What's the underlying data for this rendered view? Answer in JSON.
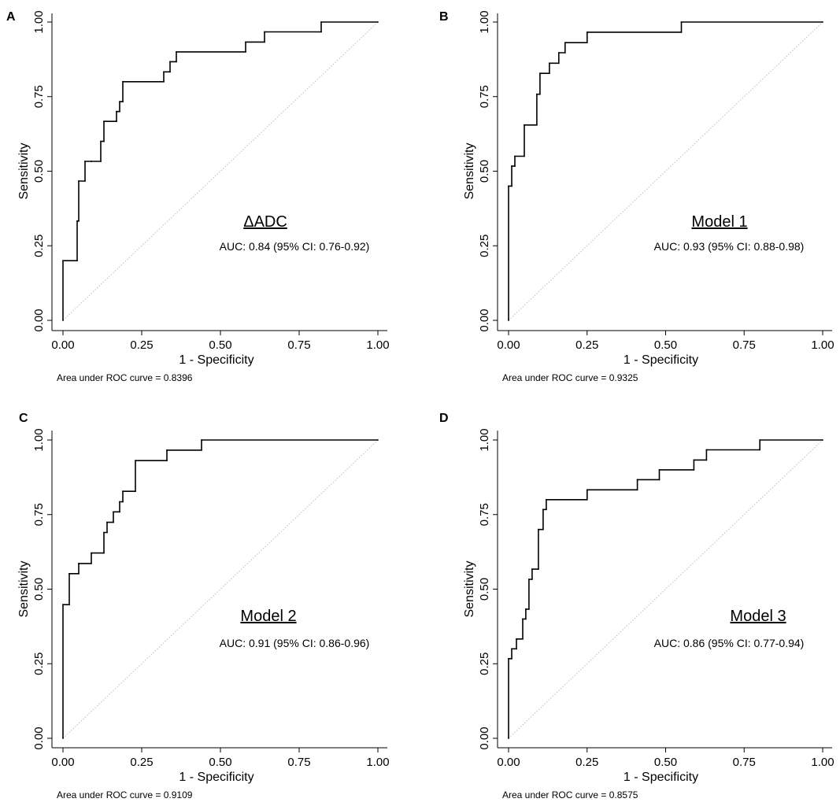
{
  "chart_data": [
    {
      "type": "line",
      "panel": "A",
      "title": "ΔADC",
      "annotation": "AUC: 0.84 (95% CI: 0.76-0.92)",
      "footer": "Area under ROC curve = 0.8396",
      "xlabel": "1 - Specificity",
      "ylabel": "Sensitivity",
      "xlim": [
        0,
        1
      ],
      "ylim": [
        0,
        1
      ],
      "xticks": [
        "0.00",
        "0.25",
        "0.50",
        "0.75",
        "1.00"
      ],
      "yticks": [
        "0.00",
        "0.25",
        "0.50",
        "0.75",
        "1.00"
      ],
      "reference_line": "diagonal",
      "series": [
        {
          "name": "ROC",
          "x": [
            0,
            0,
            0.045,
            0.045,
            0.05,
            0.05,
            0.07,
            0.07,
            0.09,
            0.09,
            0.12,
            0.12,
            0.13,
            0.13,
            0.17,
            0.17,
            0.18,
            0.18,
            0.19,
            0.19,
            0.32,
            0.32,
            0.34,
            0.34,
            0.36,
            0.36,
            0.58,
            0.58,
            0.64,
            0.64,
            0.82,
            0.82,
            1
          ],
          "y": [
            0,
            0.2,
            0.2,
            0.333,
            0.333,
            0.467,
            0.467,
            0.533,
            0.533,
            0.533,
            0.533,
            0.6,
            0.6,
            0.667,
            0.667,
            0.7,
            0.7,
            0.733,
            0.733,
            0.8,
            0.8,
            0.833,
            0.833,
            0.867,
            0.867,
            0.9,
            0.9,
            0.933,
            0.933,
            0.967,
            0.967,
            1,
            1
          ]
        }
      ]
    },
    {
      "type": "line",
      "panel": "B",
      "title": "Model 1",
      "annotation": "AUC: 0.93 (95% CI: 0.88-0.98)",
      "footer": "Area under ROC curve = 0.9325",
      "xlabel": "1 - Specificity",
      "ylabel": "Sensitivity",
      "xlim": [
        0,
        1
      ],
      "ylim": [
        0,
        1
      ],
      "xticks": [
        "0.00",
        "0.25",
        "0.50",
        "0.75",
        "1.00"
      ],
      "yticks": [
        "0.00",
        "0.25",
        "0.50",
        "0.75",
        "1.00"
      ],
      "reference_line": "diagonal",
      "series": [
        {
          "name": "ROC",
          "x": [
            0,
            0,
            0.01,
            0.01,
            0.02,
            0.02,
            0.05,
            0.05,
            0.09,
            0.09,
            0.1,
            0.1,
            0.13,
            0.13,
            0.16,
            0.16,
            0.18,
            0.18,
            0.25,
            0.25,
            0.55,
            0.55,
            1
          ],
          "y": [
            0,
            0.45,
            0.45,
            0.517,
            0.517,
            0.55,
            0.55,
            0.655,
            0.655,
            0.758,
            0.758,
            0.828,
            0.828,
            0.862,
            0.862,
            0.897,
            0.897,
            0.931,
            0.931,
            0.966,
            0.966,
            1,
            1
          ]
        }
      ]
    },
    {
      "type": "line",
      "panel": "C",
      "title": "Model 2",
      "annotation": "AUC: 0.91 (95% CI: 0.86-0.96)",
      "footer": "Area under ROC curve = 0.9109",
      "xlabel": "1 - Specificity",
      "ylabel": "Sensitivity",
      "xlim": [
        0,
        1
      ],
      "ylim": [
        0,
        1
      ],
      "xticks": [
        "0.00",
        "0.25",
        "0.50",
        "0.75",
        "1.00"
      ],
      "yticks": [
        "0.00",
        "0.25",
        "0.50",
        "0.75",
        "1.00"
      ],
      "reference_line": "diagonal",
      "series": [
        {
          "name": "ROC",
          "x": [
            0,
            0,
            0.02,
            0.02,
            0.05,
            0.05,
            0.09,
            0.09,
            0.13,
            0.13,
            0.14,
            0.14,
            0.16,
            0.16,
            0.18,
            0.18,
            0.19,
            0.19,
            0.23,
            0.23,
            0.33,
            0.33,
            0.44,
            0.44,
            1
          ],
          "y": [
            0,
            0.448,
            0.448,
            0.552,
            0.552,
            0.586,
            0.586,
            0.621,
            0.621,
            0.69,
            0.69,
            0.724,
            0.724,
            0.759,
            0.759,
            0.793,
            0.793,
            0.828,
            0.828,
            0.931,
            0.931,
            0.966,
            0.966,
            1,
            1
          ]
        }
      ]
    },
    {
      "type": "line",
      "panel": "D",
      "title": "Model 3",
      "annotation": "AUC: 0.86 (95% CI: 0.77-0.94)",
      "footer": "Area under ROC curve = 0.8575",
      "xlabel": "1 - Specificity",
      "ylabel": "Sensitivity",
      "xlim": [
        0,
        1
      ],
      "ylim": [
        0,
        1
      ],
      "xticks": [
        "0.00",
        "0.25",
        "0.50",
        "0.75",
        "1.00"
      ],
      "yticks": [
        "0.00",
        "0.25",
        "0.50",
        "0.75",
        "1.00"
      ],
      "reference_line": "diagonal",
      "series": [
        {
          "name": "ROC",
          "x": [
            0,
            0,
            0.01,
            0.01,
            0.025,
            0.025,
            0.045,
            0.045,
            0.055,
            0.055,
            0.065,
            0.065,
            0.075,
            0.075,
            0.095,
            0.095,
            0.11,
            0.11,
            0.12,
            0.12,
            0.25,
            0.25,
            0.41,
            0.41,
            0.48,
            0.48,
            0.59,
            0.59,
            0.63,
            0.63,
            0.8,
            0.8,
            1
          ],
          "y": [
            0,
            0.267,
            0.267,
            0.3,
            0.3,
            0.333,
            0.333,
            0.4,
            0.4,
            0.433,
            0.433,
            0.533,
            0.533,
            0.567,
            0.567,
            0.7,
            0.7,
            0.767,
            0.767,
            0.8,
            0.8,
            0.833,
            0.833,
            0.867,
            0.867,
            0.9,
            0.9,
            0.933,
            0.933,
            0.967,
            0.967,
            1,
            1
          ]
        }
      ]
    }
  ]
}
